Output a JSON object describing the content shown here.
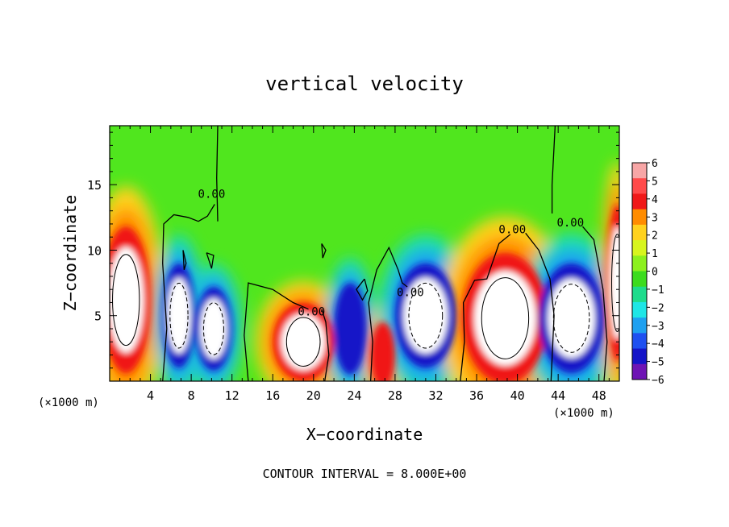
{
  "chart_data": {
    "type": "heatmap",
    "title": "vertical velocity",
    "xlabel": "X−coordinate",
    "ylabel": "Z−coordinate",
    "x_unit_label": "(×1000 m)",
    "z_unit_label": "(×1000 m)",
    "footer": "CONTOUR INTERVAL = 8.000E+00",
    "xlim": [
      0,
      50
    ],
    "ylim": [
      0,
      19.5
    ],
    "xticks": [
      4,
      8,
      12,
      16,
      20,
      24,
      28,
      32,
      36,
      40,
      44,
      48
    ],
    "yticks": [
      5,
      10,
      15
    ],
    "colorbar": {
      "ticks": [
        6,
        5,
        4,
        3,
        2,
        1,
        0,
        -1,
        -2,
        -3,
        -4,
        -5,
        -6
      ],
      "range": [
        -6,
        6
      ],
      "colors": [
        "#f7a6a6",
        "#ff4a4a",
        "#f01818",
        "#ff8c00",
        "#ffd21e",
        "#d7f51e",
        "#8cf01e",
        "#3cdc1e",
        "#1edc8c",
        "#1ee6e6",
        "#1ea0f0",
        "#1e50f0",
        "#1414c8",
        "#6e14b4"
      ]
    },
    "contour_labels": [
      {
        "text": "0.00",
        "x": 10.0,
        "z": 14.0
      },
      {
        "text": "0.00",
        "x": 19.8,
        "z": 5.0
      },
      {
        "text": "0.00",
        "x": 29.5,
        "z": 6.5
      },
      {
        "text": "0.00",
        "x": 39.5,
        "z": 11.3
      },
      {
        "text": "0.00",
        "x": 45.2,
        "z": 11.8
      }
    ],
    "features": [
      {
        "kind": "updraft",
        "x": 1.6,
        "z": 6.2,
        "rx": 2.4,
        "rz": 5.6,
        "core": true
      },
      {
        "kind": "downdraft",
        "x": 6.8,
        "z": 5.0,
        "rx": 1.6,
        "rz": 4.0,
        "core": true
      },
      {
        "kind": "downdraft",
        "x": 10.2,
        "z": 4.0,
        "rx": 1.8,
        "rz": 3.2,
        "core": true
      },
      {
        "kind": "updraft",
        "x": 19.0,
        "z": 3.0,
        "rx": 3.0,
        "rz": 3.0,
        "core": true
      },
      {
        "kind": "downdraft",
        "x": 23.6,
        "z": 4.0,
        "rx": 1.6,
        "rz": 3.5,
        "core": false
      },
      {
        "kind": "updraft",
        "x": 26.8,
        "z": 2.0,
        "rx": 1.2,
        "rz": 2.5,
        "core": false
      },
      {
        "kind": "downdraft",
        "x": 31.0,
        "z": 5.0,
        "rx": 3.0,
        "rz": 4.0,
        "core": true
      },
      {
        "kind": "updraft",
        "x": 38.8,
        "z": 4.8,
        "rx": 4.2,
        "rz": 5.0,
        "core": true
      },
      {
        "kind": "downdraft",
        "x": 45.3,
        "z": 4.8,
        "rx": 3.2,
        "rz": 4.2,
        "core": true
      },
      {
        "kind": "updraft",
        "x": 49.8,
        "z": 7.5,
        "rx": 1.0,
        "rz": 6.0,
        "core": true
      }
    ],
    "grid": false,
    "legend": "right colorbar"
  }
}
